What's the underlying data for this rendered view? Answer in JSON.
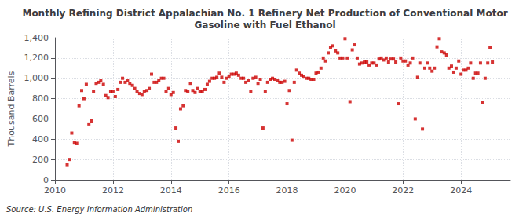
{
  "chart_data": {
    "type": "scatter",
    "title": "Monthly Refining District Appalachian No. 1 Refinery Net Production of Conventional Motor\nGasoline with Fuel Ethanol",
    "ylabel": "Thousand Barrels",
    "annotations": [
      "Source: U.S. Energy Information Administration"
    ],
    "color": "#cc0000",
    "marker": "square",
    "grid": true,
    "xlim": [
      2010.0,
      2025.7
    ],
    "xticks": [
      2010,
      2012,
      2014,
      2016,
      2018,
      2020,
      2022,
      2024
    ],
    "ylim": [
      0,
      1400
    ],
    "yticks": [
      0,
      200,
      400,
      600,
      800,
      {
        "value": 1000,
        "label": "1,000"
      },
      {
        "value": 1200,
        "label": "1,200"
      },
      {
        "value": 1400,
        "label": "1,400"
      }
    ],
    "x": [
      2010.42,
      2010.5,
      2010.58,
      2010.67,
      2010.75,
      2010.83,
      2010.92,
      2011.0,
      2011.08,
      2011.17,
      2011.25,
      2011.33,
      2011.42,
      2011.5,
      2011.58,
      2011.67,
      2011.75,
      2011.83,
      2011.92,
      2012.0,
      2012.08,
      2012.17,
      2012.25,
      2012.33,
      2012.42,
      2012.5,
      2012.58,
      2012.67,
      2012.75,
      2012.83,
      2012.92,
      2013.0,
      2013.08,
      2013.17,
      2013.25,
      2013.33,
      2013.42,
      2013.5,
      2013.58,
      2013.67,
      2013.75,
      2013.83,
      2013.92,
      2014.0,
      2014.08,
      2014.17,
      2014.25,
      2014.33,
      2014.42,
      2014.5,
      2014.58,
      2014.67,
      2014.75,
      2014.83,
      2014.92,
      2015.0,
      2015.08,
      2015.17,
      2015.25,
      2015.33,
      2015.42,
      2015.5,
      2015.58,
      2015.67,
      2015.75,
      2015.83,
      2015.92,
      2016.0,
      2016.08,
      2016.17,
      2016.25,
      2016.33,
      2016.42,
      2016.5,
      2016.58,
      2016.67,
      2016.75,
      2016.83,
      2016.92,
      2017.0,
      2017.08,
      2017.17,
      2017.25,
      2017.33,
      2017.42,
      2017.5,
      2017.58,
      2017.67,
      2017.75,
      2017.83,
      2017.92,
      2018.0,
      2018.08,
      2018.17,
      2018.25,
      2018.33,
      2018.42,
      2018.5,
      2018.58,
      2018.67,
      2018.75,
      2018.83,
      2018.92,
      2019.0,
      2019.08,
      2019.17,
      2019.25,
      2019.33,
      2019.42,
      2019.5,
      2019.58,
      2019.67,
      2019.75,
      2019.83,
      2019.92,
      2020.0,
      2020.08,
      2020.17,
      2020.25,
      2020.33,
      2020.42,
      2020.5,
      2020.58,
      2020.67,
      2020.75,
      2020.83,
      2020.92,
      2021.0,
      2021.08,
      2021.17,
      2021.25,
      2021.33,
      2021.42,
      2021.5,
      2021.58,
      2021.67,
      2021.75,
      2021.83,
      2021.92,
      2022.0,
      2022.08,
      2022.17,
      2022.25,
      2022.33,
      2022.42,
      2022.5,
      2022.58,
      2022.67,
      2022.75,
      2022.83,
      2022.92,
      2023.0,
      2023.08,
      2023.17,
      2023.25,
      2023.33,
      2023.42,
      2023.5,
      2023.58,
      2023.67,
      2023.75,
      2023.83,
      2023.92,
      2024.0,
      2024.08,
      2024.17,
      2024.25,
      2024.33,
      2024.42,
      2024.5,
      2024.58,
      2024.67,
      2024.75,
      2024.83,
      2024.92,
      2025.0,
      2025.08
    ],
    "values": [
      150,
      200,
      460,
      370,
      360,
      730,
      880,
      800,
      940,
      550,
      580,
      870,
      950,
      960,
      980,
      940,
      830,
      810,
      870,
      870,
      820,
      890,
      960,
      1000,
      960,
      980,
      950,
      930,
      900,
      870,
      850,
      840,
      870,
      880,
      900,
      1040,
      960,
      960,
      980,
      1000,
      1000,
      870,
      900,
      840,
      860,
      510,
      380,
      700,
      730,
      880,
      870,
      950,
      880,
      860,
      900,
      870,
      870,
      890,
      940,
      970,
      1000,
      1000,
      1010,
      1050,
      1010,
      960,
      1000,
      1020,
      1040,
      1040,
      1050,
      1030,
      1000,
      1000,
      960,
      980,
      870,
      1000,
      1010,
      950,
      990,
      510,
      870,
      960,
      990,
      1000,
      990,
      980,
      960,
      960,
      970,
      750,
      880,
      390,
      960,
      1080,
      1050,
      1030,
      1020,
      1000,
      1000,
      990,
      990,
      1050,
      1060,
      1100,
      1200,
      1170,
      1250,
      1300,
      1320,
      1270,
      1250,
      1200,
      1200,
      1390,
      1200,
      770,
      1280,
      1330,
      1200,
      1140,
      1150,
      1160,
      1160,
      1130,
      1150,
      1150,
      1130,
      1190,
      1200,
      1180,
      1200,
      1160,
      1190,
      1190,
      1160,
      750,
      1200,
      1170,
      1170,
      1130,
      1150,
      1200,
      600,
      1010,
      1150,
      500,
      1100,
      1150,
      1100,
      1070,
      1100,
      1310,
      1390,
      1260,
      1250,
      1230,
      1100,
      1120,
      1060,
      1100,
      1170,
      1040,
      1080,
      1080,
      1100,
      1150,
      1000,
      1050,
      1050,
      1150,
      760,
      1000,
      1150,
      1300,
      1160
    ]
  }
}
